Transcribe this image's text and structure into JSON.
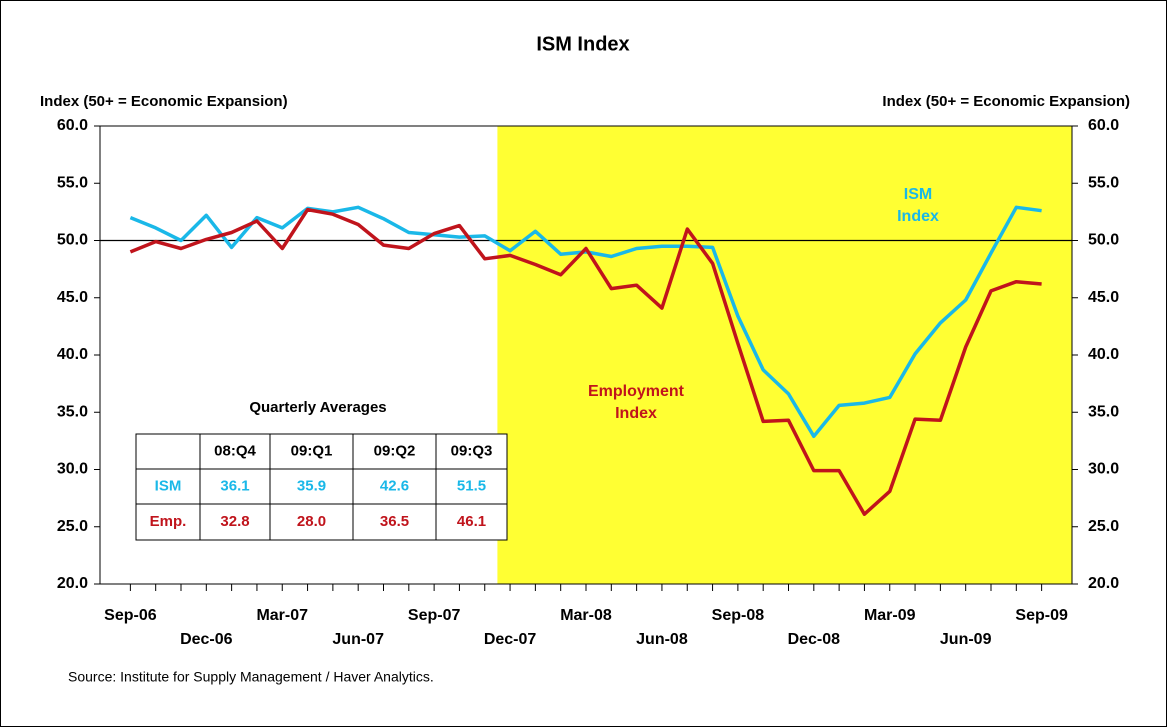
{
  "chart_data": {
    "type": "line",
    "title": "ISM Index",
    "y_label": "Index (50+ = Economic Expansion)",
    "y2_label": "Index (50+ = Economic Expansion)",
    "categories": [
      "Sep-06",
      null,
      null,
      "Dec-06",
      null,
      null,
      "Mar-07",
      null,
      null,
      "Jun-07",
      null,
      null,
      "Sep-07",
      null,
      null,
      "Dec-07",
      null,
      null,
      "Mar-08",
      null,
      null,
      "Jun-08",
      null,
      null,
      "Sep-08",
      null,
      null,
      "Dec-08",
      null,
      null,
      "Mar-09",
      null,
      null,
      "Jun-09",
      null,
      null,
      "Sep-09"
    ],
    "series": [
      {
        "name": "ISM Index",
        "color": "#1ab8e8",
        "values": [
          52.0,
          51.1,
          50.0,
          52.2,
          49.4,
          52.0,
          51.1,
          52.8,
          52.5,
          52.9,
          51.9,
          50.7,
          50.5,
          50.3,
          50.4,
          49.1,
          50.8,
          48.8,
          49.0,
          48.6,
          49.3,
          49.5,
          49.5,
          49.4,
          43.4,
          38.7,
          36.6,
          32.9,
          35.6,
          35.8,
          36.3,
          40.1,
          42.8,
          44.8,
          48.9,
          52.9,
          52.6
        ]
      },
      {
        "name": "Employment Index",
        "color": "#c0141c",
        "values": [
          49.0,
          49.9,
          49.3,
          50.1,
          50.7,
          51.7,
          49.3,
          52.7,
          52.3,
          51.4,
          49.6,
          49.3,
          50.6,
          51.3,
          48.4,
          48.7,
          47.9,
          47.0,
          49.3,
          45.8,
          46.1,
          44.1,
          51.0,
          48.0,
          41.0,
          34.2,
          34.3,
          29.9,
          29.9,
          26.1,
          28.1,
          34.4,
          34.3,
          40.7,
          45.6,
          46.4,
          46.2
        ]
      }
    ],
    "annotations": [
      [
        "ISM",
        "Index"
      ],
      [
        "Employment",
        "Index"
      ]
    ],
    "ylim": [
      20,
      60
    ],
    "yticks": [
      {
        "value": 20,
        "label": "20.0"
      },
      {
        "value": 25,
        "label": "25.0"
      },
      {
        "value": 30,
        "label": "30.0"
      },
      {
        "value": 35,
        "label": "35.0"
      },
      {
        "value": 40,
        "label": "40.0"
      },
      {
        "value": 45,
        "label": "45.0"
      },
      {
        "value": 50,
        "label": "50.0"
      },
      {
        "value": 55,
        "label": "55.0"
      },
      {
        "value": 60,
        "label": "60.0"
      }
    ],
    "reference_line": 50,
    "shade_start": "Dec-07",
    "shade_color": "#ffff33",
    "table": {
      "title": "Quarterly Averages",
      "columns": [
        "08:Q4",
        "09:Q1",
        "09:Q2",
        "09:Q3"
      ],
      "rows": [
        {
          "name": "ISM",
          "values": [
            36.1,
            35.9,
            42.6,
            51.5
          ]
        },
        {
          "name": "Emp.",
          "values": [
            32.8,
            28.0,
            36.5,
            46.1
          ],
          "value_labels": [
            "32.8",
            "28.0",
            "36.5",
            "46.1"
          ]
        }
      ]
    },
    "source": "Source: Institute for Supply Management / Haver Analytics."
  }
}
